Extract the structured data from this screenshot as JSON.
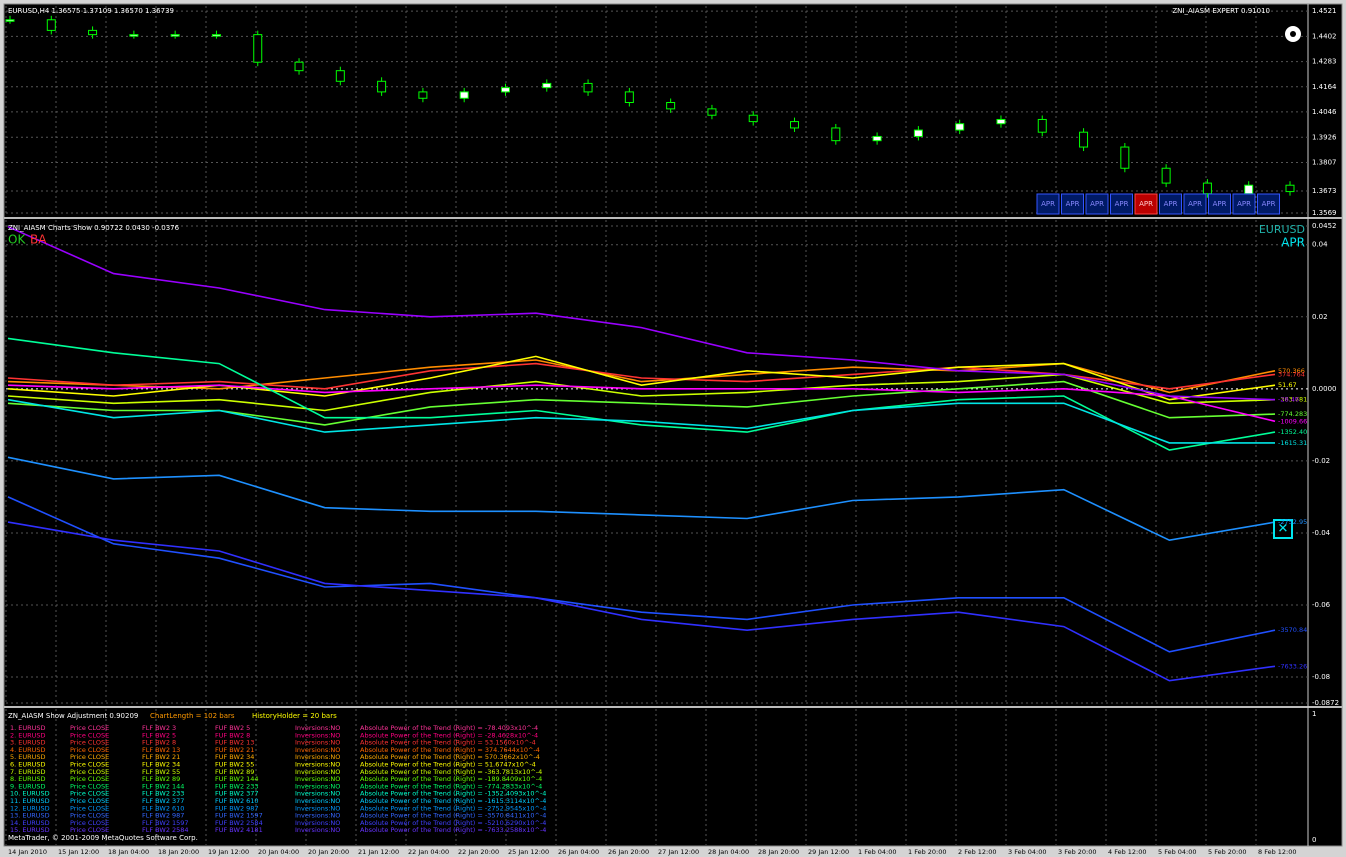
{
  "price_pane": {
    "header": "EURUSD,H4  1.36575 1.37109 1.36570 1.36739",
    "expert": "ZNI_AIASM EXPERT 0.91010",
    "ylim": [
      1.3569,
      1.4545
    ],
    "yticks": [
      1.4521,
      1.4402,
      1.4283,
      1.4164,
      1.4046,
      1.3926,
      1.3807,
      1.3673,
      1.3569
    ],
    "closes": [
      1.448,
      1.443,
      1.441,
      1.441,
      1.441,
      1.441,
      1.428,
      1.424,
      1.419,
      1.414,
      1.411,
      1.414,
      1.416,
      1.418,
      1.414,
      1.409,
      1.406,
      1.403,
      1.4,
      1.397,
      1.391,
      1.393,
      1.396,
      1.399,
      1.401,
      1.395,
      1.388,
      1.378,
      1.371,
      1.366,
      1.37,
      1.367
    ],
    "buttons": [
      "APR",
      "APR",
      "APR",
      "APR",
      "APR",
      "APR",
      "APR",
      "APR",
      "APR",
      "APR"
    ]
  },
  "indicator_pane": {
    "header": "ZNI_AIASM Charts Show 0.90722 0.0430 -0.0376",
    "ok": "OK",
    "ba": "BA",
    "symbol": "EURUSD",
    "mode": "APR",
    "ylim": [
      -0.0872,
      0.0452
    ],
    "yticks": [
      0.0452,
      0.04,
      0.02,
      {
        "value": 0,
        "label": "0.0000"
      },
      -0.02,
      -0.04,
      -0.06,
      -0.08,
      -0.0872
    ],
    "series": [
      {
        "name": "570.366",
        "color": "#ff8c00",
        "values": [
          0.002,
          0.001,
          0.0,
          0.003,
          0.006,
          0.008,
          0.002,
          0.004,
          0.006,
          0.005,
          0.007,
          -0.001,
          0.005
        ]
      },
      {
        "name": "374.764",
        "color": "#ff3333",
        "values": [
          0.003,
          0.001,
          0.002,
          0.0,
          0.005,
          0.007,
          0.003,
          0.002,
          0.004,
          0.006,
          0.004,
          0.0,
          0.004
        ]
      },
      {
        "name": "51.67",
        "color": "#ffff00",
        "values": [
          0.0,
          -0.002,
          0.001,
          -0.002,
          0.003,
          0.009,
          0.001,
          0.005,
          0.003,
          0.006,
          0.007,
          -0.003,
          0.001
        ]
      },
      {
        "name": "-363.781",
        "color": "#ccff00",
        "values": [
          -0.002,
          -0.004,
          -0.003,
          -0.006,
          -0.001,
          0.002,
          -0.002,
          -0.001,
          0.001,
          0.002,
          0.004,
          -0.004,
          -0.003
        ]
      },
      {
        "name": "-774.283",
        "color": "#66ff33",
        "values": [
          -0.004,
          -0.006,
          -0.006,
          -0.01,
          -0.005,
          -0.003,
          -0.004,
          -0.005,
          -0.002,
          0.0,
          0.002,
          -0.008,
          -0.007
        ]
      },
      {
        "name": "-1009.66",
        "color": "#ff00ff",
        "values": [
          0.001,
          0.0,
          0.001,
          -0.001,
          0.0,
          0.001,
          0.0,
          0.0,
          0.0,
          -0.001,
          0.0,
          -0.002,
          -0.009
        ]
      },
      {
        "name": "-1352.40",
        "color": "#00ff99",
        "values": [
          0.014,
          0.01,
          0.007,
          -0.008,
          -0.008,
          -0.006,
          -0.01,
          -0.012,
          -0.006,
          -0.003,
          -0.002,
          -0.017,
          -0.012
        ]
      },
      {
        "name": "-1615.31",
        "color": "#00e5e5",
        "values": [
          -0.003,
          -0.008,
          -0.006,
          -0.012,
          -0.01,
          -0.008,
          -0.009,
          -0.011,
          -0.006,
          -0.004,
          -0.004,
          -0.015,
          -0.015
        ]
      },
      {
        "name": "-28.46",
        "color": "#9900ff",
        "values": [
          0.045,
          0.032,
          0.028,
          0.022,
          0.02,
          0.021,
          0.017,
          0.01,
          0.008,
          0.005,
          0.004,
          -0.002,
          -0.003
        ]
      },
      {
        "name": "-2752.95",
        "color": "#1e90ff",
        "values": [
          -0.019,
          -0.025,
          -0.024,
          -0.033,
          -0.034,
          -0.034,
          -0.035,
          -0.036,
          -0.031,
          -0.03,
          -0.028,
          -0.042,
          -0.037
        ]
      },
      {
        "name": "-3570.84",
        "color": "#2050ff",
        "values": [
          -0.03,
          -0.043,
          -0.047,
          -0.055,
          -0.054,
          -0.058,
          -0.062,
          -0.064,
          -0.06,
          -0.058,
          -0.058,
          -0.073,
          -0.067
        ]
      },
      {
        "name": "-7633.26",
        "color": "#3030ff",
        "values": [
          -0.037,
          -0.042,
          -0.045,
          -0.054,
          -0.056,
          -0.058,
          -0.064,
          -0.067,
          -0.064,
          -0.062,
          -0.066,
          -0.081,
          -0.077
        ]
      }
    ]
  },
  "table_pane": {
    "header": "ZN_AIASM Show Adjustment 0.90209",
    "chart_length": "ChartLength = 102 bars",
    "history": "HistoryHolder = 20 bars",
    "ytop": "1",
    "ybottom": "0",
    "rows": [
      {
        "color": "#ff3399",
        "cells": [
          "1. EURUSD",
          "Price CLOSE",
          "FLF BW2 3",
          "FUF BW2 5",
          "Inversions:NO",
          "Absolute Power of the Trend (Right) = -78.4093x10^-4"
        ]
      },
      {
        "color": "#ff0080",
        "cells": [
          "2. EURUSD",
          "Price CLOSE",
          "FLF BW2 5",
          "FUF BW2 8",
          "Inversions:NO",
          "Absolute Power of the Trend (Right) = -28.4628x10^-4"
        ]
      },
      {
        "color": "#ff3333",
        "cells": [
          "3. EURUSD",
          "Price CLOSE",
          "FLF BW2 8",
          "FUF BW2 13",
          "Inversions:NO",
          "Absolute Power of the Trend (Right) = 53.1560x10^-4"
        ]
      },
      {
        "color": "#ff6600",
        "cells": [
          "4. EURUSD",
          "Price CLOSE",
          "FLF BW2 13",
          "FUF BW2 21",
          "Inversions:NO",
          "Absolute Power of the Trend (Right) = 374.7644x10^-4"
        ]
      },
      {
        "color": "#ffaa00",
        "cells": [
          "5. EURUSD",
          "Price CLOSE",
          "FLF BW2 21",
          "FUF BW2 34",
          "Inversions:NO",
          "Absolute Power of the Trend (Right) = 570.3662x10^-4"
        ]
      },
      {
        "color": "#ffff00",
        "cells": [
          "6. EURUSD",
          "Price CLOSE",
          "FLF BW2 34",
          "FUF BW2 55",
          "Inversions:NO",
          "Absolute Power of the Trend (Right) = 51.6747x10^-4"
        ]
      },
      {
        "color": "#ccff00",
        "cells": [
          "7. EURUSD",
          "Price CLOSE",
          "FLF BW2 55",
          "FUF BW2 89",
          "Inversions:NO",
          "Absolute Power of the Trend (Right) = -363.7813x10^-4"
        ]
      },
      {
        "color": "#66ff00",
        "cells": [
          "8. EURUSD",
          "Price CLOSE",
          "FLF BW2 89",
          "FUF BW2 144",
          "Inversions:NO",
          "Absolute Power of the Trend (Right) = -189.8409x10^-4"
        ]
      },
      {
        "color": "#00ff66",
        "cells": [
          "9. EURUSD",
          "Price CLOSE",
          "FLF BW2 144",
          "FUF BW2 233",
          "Inversions:NO",
          "Absolute Power of the Trend (Right) = -774.2833x10^-4"
        ]
      },
      {
        "color": "#00ffcc",
        "cells": [
          "10. EURUSD",
          "Price CLOSE",
          "FLF BW2 233",
          "FUF BW2 377",
          "Inversions:NO",
          "Absolute Power of the Trend (Right) = -1352.4093x10^-4"
        ]
      },
      {
        "color": "#00ccff",
        "cells": [
          "11. EURUSD",
          "Price CLOSE",
          "FLF BW2 377",
          "FUF BW2 610",
          "Inversions:NO",
          "Absolute Power of the Trend (Right) = -1615.3114x10^-4"
        ]
      },
      {
        "color": "#0099ff",
        "cells": [
          "12. EURUSD",
          "Price CLOSE",
          "FLF BW2 610",
          "FUF BW2 987",
          "Inversions:NO",
          "Absolute Power of the Trend (Right) = -2752.9545x10^-4"
        ]
      },
      {
        "color": "#3366ff",
        "cells": [
          "13. EURUSD",
          "Price CLOSE",
          "FLF BW2 987",
          "FUF BW2 1597",
          "Inversions:NO",
          "Absolute Power of the Trend (Right) = -3570.8411x10^-4"
        ]
      },
      {
        "color": "#4040ff",
        "cells": [
          "14. EURUSD",
          "Price CLOSE",
          "FLF BW2 1597",
          "FUF BW2 2584",
          "Inversions:NO",
          "Absolute Power of the Trend (Right) = -5210.6290x10^-4"
        ]
      },
      {
        "color": "#6633ff",
        "cells": [
          "15. EURUSD",
          "Price CLOSE",
          "FLF BW2 2584",
          "FUF BW2 4181",
          "Inversions:NO",
          "Absolute Power of the Trend (Right) = -7633.2588x10^-4"
        ]
      }
    ],
    "copyright": "MetaTrader, © 2001-2009 MetaQuotes Software Corp."
  },
  "x_axis": [
    "14 Jan 2010",
    "15 Jan 12:00",
    "18 Jan 04:00",
    "18 Jan 20:00",
    "19 Jan 12:00",
    "20 Jan 04:00",
    "20 Jan 20:00",
    "21 Jan 12:00",
    "22 Jan 04:00",
    "22 Jan 20:00",
    "25 Jan 12:00",
    "26 Jan 04:00",
    "26 Jan 20:00",
    "27 Jan 12:00",
    "28 Jan 04:00",
    "28 Jan 20:00",
    "29 Jan 12:00",
    "1 Feb 04:00",
    "1 Feb 20:00",
    "2 Feb 12:00",
    "3 Feb 04:00",
    "3 Feb 20:00",
    "4 Feb 12:00",
    "5 Feb 04:00",
    "5 Feb 20:00",
    "8 Feb 12:00"
  ]
}
